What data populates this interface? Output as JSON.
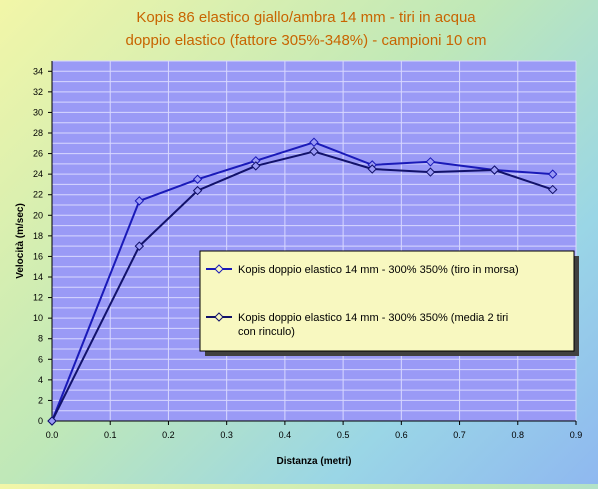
{
  "chart_data": {
    "type": "line",
    "title": "Kopis 86 elastico giallo/ambra 14 mm - tiri in acqua",
    "subtitle": "doppio elastico (fattore 305%-348%) - campioni 10 cm",
    "xlabel": "Distanza (metri)",
    "ylabel": "Velocità (m/sec)",
    "xlim": [
      0,
      0.9
    ],
    "ylim": [
      0,
      35
    ],
    "x_ticks": [
      "0.0",
      "0.1",
      "0.2",
      "0.3",
      "0.4",
      "0.5",
      "0.6",
      "0.7",
      "0.8",
      "0.9"
    ],
    "y_ticks": [
      "0",
      "2",
      "4",
      "6",
      "8",
      "10",
      "12",
      "14",
      "16",
      "18",
      "20",
      "22",
      "24",
      "26",
      "28",
      "30",
      "32",
      "34"
    ],
    "grid": true,
    "legend_position": "right-middle",
    "series": [
      {
        "name": "Kopis doppio elastico 14 mm - 300% 350% (tiro in morsa)",
        "color": "#1a1ab8",
        "x": [
          0.0,
          0.15,
          0.25,
          0.35,
          0.45,
          0.55,
          0.65,
          0.76,
          0.86
        ],
        "y": [
          0,
          21.4,
          23.5,
          25.3,
          27.1,
          24.9,
          25.2,
          24.4,
          24.0
        ]
      },
      {
        "name": "Kopis doppio elastico 14 mm - 300% 350% (media 2 tiri con rinculo)",
        "name_lines": [
          "Kopis doppio elastico 14 mm - 300% 350% (media 2 tiri",
          "con rinculo)"
        ],
        "color": "#12126a",
        "x": [
          0.0,
          0.15,
          0.25,
          0.35,
          0.45,
          0.55,
          0.65,
          0.76,
          0.86
        ],
        "y": [
          0,
          17.0,
          22.4,
          24.8,
          26.2,
          24.5,
          24.2,
          24.4,
          22.5
        ]
      }
    ]
  },
  "colors": {
    "title": "#c86400",
    "plot_background": "#9a9af6",
    "gridline": "#d8d8ff",
    "legend_background": "#f8f8c0"
  }
}
